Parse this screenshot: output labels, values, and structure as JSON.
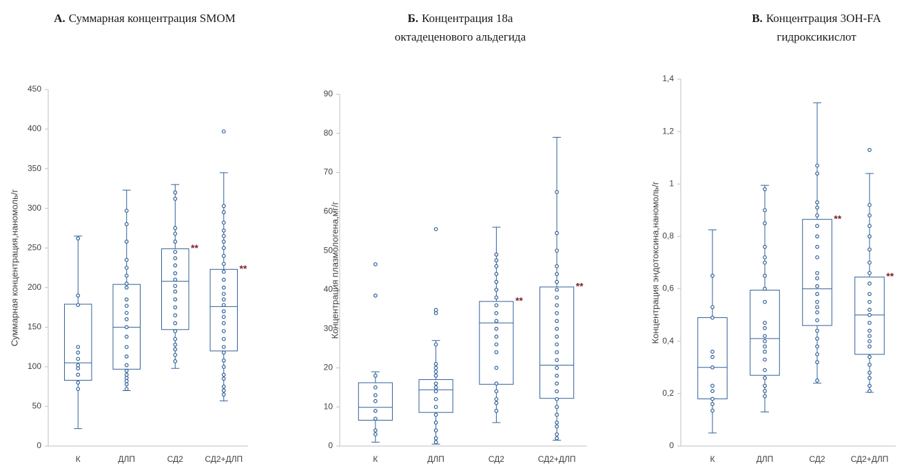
{
  "chart_data": [
    {
      "type": "box",
      "label": "А.",
      "title": [
        "Суммарная концентрация SMOM"
      ],
      "ylabel": "Суммарная концентрация,наномоль/г",
      "categories": [
        "К",
        "ДЛП",
        "СД2",
        "СД2+ДЛП"
      ],
      "color": "#2e5f98",
      "annotation_color": "#7b1f2b",
      "grid": false,
      "ylim": [
        0,
        450
      ],
      "yticks": [
        0,
        50,
        100,
        150,
        200,
        250,
        300,
        350,
        400,
        450
      ],
      "annotations": [
        null,
        null,
        "**",
        "**"
      ],
      "boxes": [
        {
          "whisker_low": 22,
          "q1": 83,
          "median": 105,
          "q3": 179,
          "whisker_high": 265,
          "points": [
            72,
            80,
            90,
            98,
            102,
            110,
            118,
            125,
            178,
            190,
            262
          ]
        },
        {
          "whisker_low": 70,
          "q1": 97,
          "median": 150,
          "q3": 204,
          "whisker_high": 323,
          "points": [
            72,
            78,
            82,
            86,
            90,
            95,
            102,
            113,
            125,
            138,
            150,
            160,
            168,
            177,
            185,
            200,
            205,
            215,
            225,
            235,
            258,
            280,
            297
          ]
        },
        {
          "whisker_low": 98,
          "q1": 147,
          "median": 208,
          "q3": 249,
          "whisker_high": 330,
          "points": [
            107,
            115,
            122,
            128,
            135,
            145,
            155,
            165,
            175,
            185,
            195,
            202,
            210,
            218,
            228,
            237,
            245,
            258,
            268,
            275,
            312,
            320
          ]
        },
        {
          "whisker_low": 57,
          "q1": 120,
          "median": 176,
          "q3": 223,
          "whisker_high": 345,
          "points": [
            65,
            70,
            75,
            85,
            90,
            100,
            108,
            118,
            125,
            135,
            145,
            155,
            163,
            170,
            178,
            185,
            192,
            200,
            210,
            220,
            230,
            240,
            250,
            258,
            265,
            272,
            282,
            295,
            303,
            397
          ]
        }
      ]
    },
    {
      "type": "box",
      "label": "Б.",
      "title": [
        "Концентрация 18а",
        "октадеценового альдегида"
      ],
      "ylabel": "Концентрация плазмологена,мг/г",
      "categories": [
        "К",
        "ДЛП",
        "СД2",
        "СД2+ДЛП"
      ],
      "color": "#2e5f98",
      "annotation_color": "#7b1f2b",
      "grid": false,
      "ylim": [
        0,
        90
      ],
      "yticks": [
        0,
        10,
        20,
        30,
        40,
        50,
        60,
        70,
        80,
        90
      ],
      "annotations": [
        null,
        null,
        "**",
        "**"
      ],
      "boxes": [
        {
          "whisker_low": 1,
          "q1": 6.6,
          "median": 9.9,
          "q3": 16.2,
          "whisker_high": 19,
          "points": [
            3,
            4,
            7,
            9,
            11.5,
            13,
            15,
            18,
            38.5,
            46.5
          ]
        },
        {
          "whisker_low": 0.5,
          "q1": 8.6,
          "median": 14.4,
          "q3": 17,
          "whisker_high": 27,
          "points": [
            1,
            2,
            4,
            6,
            8,
            10,
            12,
            14,
            15,
            16,
            18,
            19,
            20,
            21,
            26,
            34,
            34.8,
            55.5
          ]
        },
        {
          "whisker_low": 6,
          "q1": 15.8,
          "median": 31.5,
          "q3": 37,
          "whisker_high": 56,
          "points": [
            9,
            11,
            12,
            14,
            16,
            20,
            24,
            26,
            28,
            30,
            32,
            34,
            36,
            38,
            40,
            42,
            44,
            46,
            47.5,
            49
          ]
        },
        {
          "whisker_low": 1.5,
          "q1": 12.2,
          "median": 20.7,
          "q3": 40.7,
          "whisker_high": 79,
          "points": [
            2,
            3,
            5,
            6,
            8,
            10,
            12,
            14,
            16,
            18,
            20,
            22,
            24,
            26,
            28,
            30,
            32,
            34,
            36,
            38,
            40,
            42,
            44,
            46,
            50,
            54.5,
            65
          ]
        }
      ]
    },
    {
      "type": "box",
      "label": "В.",
      "title": [
        "Концентрация 3OH-FA",
        "гидроксикислот"
      ],
      "ylabel": "Концентрация эндотоксина,наномоль/г",
      "categories": [
        "К",
        "ДЛП",
        "СД2",
        "СД2+ДЛП"
      ],
      "color": "#2e5f98",
      "annotation_color": "#7b1f2b",
      "grid": false,
      "ylim": [
        0,
        1.4
      ],
      "yticks": [
        0,
        {
          "value": 0.2,
          "label": "0,2"
        },
        {
          "value": 0.4,
          "label": "0,4"
        },
        {
          "value": 0.6,
          "label": "0,6"
        },
        {
          "value": 0.8,
          "label": "0,8"
        },
        1,
        {
          "value": 1.2,
          "label": "1,2"
        },
        {
          "value": 1.4,
          "label": "1,4"
        }
      ],
      "annotations": [
        null,
        null,
        "**",
        "**"
      ],
      "boxes": [
        {
          "whisker_low": 0.05,
          "q1": 0.18,
          "median": 0.3,
          "q3": 0.49,
          "whisker_high": 0.825,
          "points": [
            0.135,
            0.16,
            0.18,
            0.21,
            0.23,
            0.3,
            0.34,
            0.36,
            0.49,
            0.53,
            0.65
          ]
        },
        {
          "whisker_low": 0.13,
          "q1": 0.27,
          "median": 0.41,
          "q3": 0.595,
          "whisker_high": 0.995,
          "points": [
            0.19,
            0.21,
            0.23,
            0.26,
            0.29,
            0.33,
            0.36,
            0.38,
            0.4,
            0.42,
            0.45,
            0.47,
            0.55,
            0.6,
            0.65,
            0.7,
            0.72,
            0.76,
            0.85,
            0.9,
            0.98
          ]
        },
        {
          "whisker_low": 0.24,
          "q1": 0.46,
          "median": 0.6,
          "q3": 0.865,
          "whisker_high": 1.31,
          "points": [
            0.25,
            0.32,
            0.35,
            0.38,
            0.41,
            0.44,
            0.48,
            0.51,
            0.53,
            0.55,
            0.58,
            0.61,
            0.64,
            0.66,
            0.72,
            0.76,
            0.8,
            0.84,
            0.88,
            0.91,
            0.93,
            1.04,
            1.07
          ]
        },
        {
          "whisker_low": 0.205,
          "q1": 0.35,
          "median": 0.5,
          "q3": 0.645,
          "whisker_high": 1.04,
          "points": [
            0.21,
            0.23,
            0.26,
            0.28,
            0.31,
            0.34,
            0.38,
            0.4,
            0.42,
            0.44,
            0.47,
            0.5,
            0.52,
            0.55,
            0.58,
            0.62,
            0.66,
            0.7,
            0.75,
            0.8,
            0.84,
            0.88,
            0.92,
            1.13
          ]
        }
      ]
    }
  ]
}
